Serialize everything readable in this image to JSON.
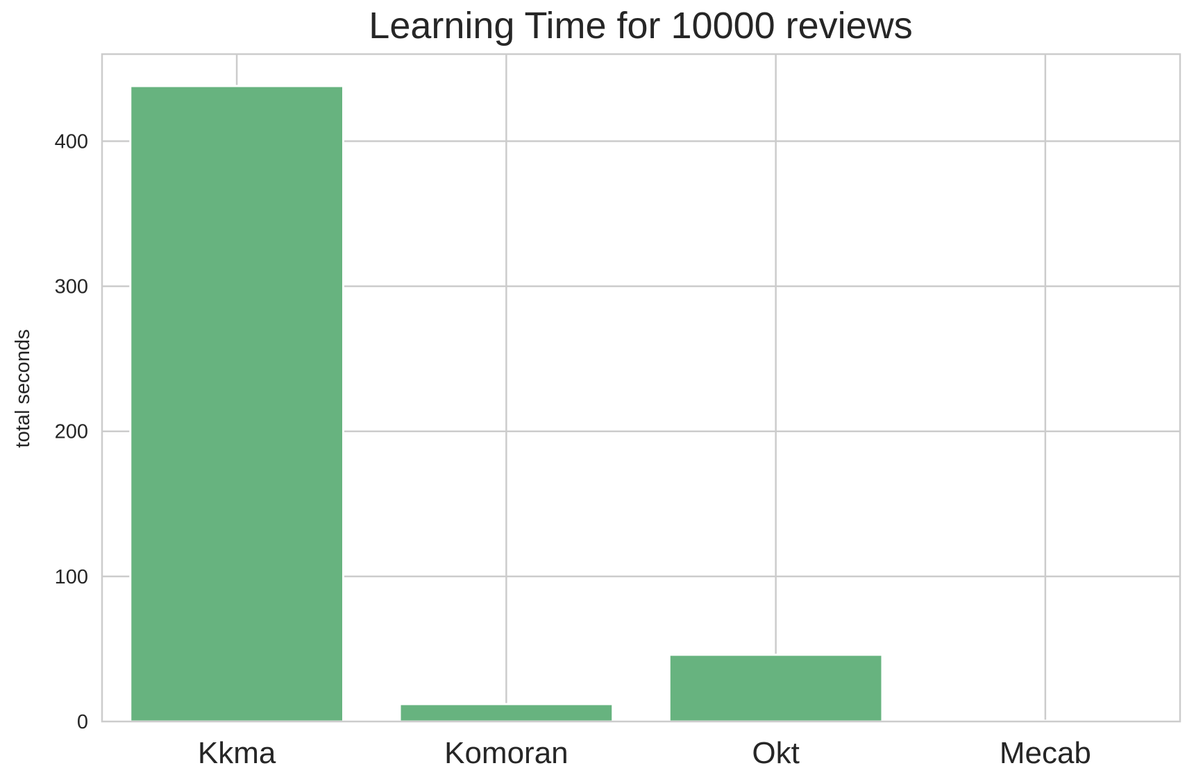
{
  "chart_data": {
    "type": "bar",
    "title": "Learning Time for 10000 reviews",
    "xlabel": "",
    "ylabel": "total seconds",
    "categories": [
      "Kkma",
      "Komoran",
      "Okt",
      "Mecab"
    ],
    "values": [
      438,
      12,
      46,
      0.5
    ],
    "ylim": [
      0,
      460
    ],
    "yticks": [
      0,
      100,
      200,
      300,
      400
    ],
    "ytick_labels": [
      "0",
      "100",
      "200",
      "300",
      "400"
    ],
    "grid": true,
    "legend": "none",
    "bar_color": "#67b37f",
    "grid_color": "#cccccc",
    "axes_edge_color": "#cccccc",
    "background": "#ffffff"
  }
}
